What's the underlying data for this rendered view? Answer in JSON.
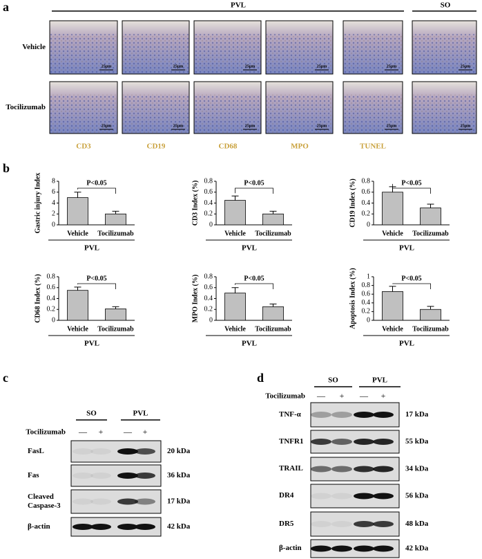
{
  "panel_a": {
    "label": "a",
    "groups": [
      "PVL",
      "SO"
    ],
    "rows": [
      "Vehicle",
      "Tocilizumab"
    ],
    "columns": [
      "CD3",
      "CD19",
      "CD68",
      "MPO",
      "TUNEL"
    ],
    "scale_bar": "25μm"
  },
  "panel_b": {
    "label": "b"
  },
  "chart_data": [
    {
      "type": "bar",
      "ylabel": "Gastric injury Index",
      "categories": [
        "Vehicle",
        "Tocilizumab"
      ],
      "group": "PVL",
      "values": [
        5.0,
        2.0
      ],
      "errors": [
        1.0,
        0.5
      ],
      "ylim": [
        0,
        8
      ],
      "yticks": [
        0,
        2,
        4,
        6,
        8
      ],
      "annotation": "P<0.05",
      "color": "#c0c0c0"
    },
    {
      "type": "bar",
      "ylabel": "CD3 Index (%)",
      "categories": [
        "Vehicle",
        "Tocilizumab"
      ],
      "group": "PVL",
      "values": [
        0.45,
        0.2
      ],
      "errors": [
        0.08,
        0.05
      ],
      "ylim": [
        0,
        0.8
      ],
      "yticks": [
        0,
        0.2,
        0.4,
        0.6,
        0.8
      ],
      "annotation": "P<0.05",
      "color": "#c0c0c0"
    },
    {
      "type": "bar",
      "ylabel": "CD19 Index (%)",
      "categories": [
        "Vehicle",
        "Tocilizumab"
      ],
      "group": "PVL",
      "values": [
        0.6,
        0.31
      ],
      "errors": [
        0.1,
        0.07
      ],
      "ylim": [
        0,
        0.8
      ],
      "yticks": [
        0,
        0.2,
        0.4,
        0.6,
        0.8
      ],
      "annotation": "P<0.05",
      "color": "#c0c0c0"
    },
    {
      "type": "bar",
      "ylabel": "CD68 Index (%)",
      "categories": [
        "Vehicle",
        "Tocilizumab"
      ],
      "group": "PVL",
      "values": [
        0.55,
        0.21
      ],
      "errors": [
        0.06,
        0.04
      ],
      "ylim": [
        0,
        0.8
      ],
      "yticks": [
        0,
        0.2,
        0.4,
        0.6,
        0.8
      ],
      "annotation": "P<0.05",
      "color": "#c0c0c0"
    },
    {
      "type": "bar",
      "ylabel": "MPO Index (%)",
      "categories": [
        "Vehicle",
        "Tocilizumab"
      ],
      "group": "PVL",
      "values": [
        0.5,
        0.25
      ],
      "errors": [
        0.1,
        0.05
      ],
      "ylim": [
        0,
        0.8
      ],
      "yticks": [
        0,
        0.2,
        0.4,
        0.6,
        0.8
      ],
      "annotation": "P<0.05",
      "color": "#c0c0c0"
    },
    {
      "type": "bar",
      "ylabel": "Apoptosis Index (%)",
      "categories": [
        "Vehicle",
        "Tocilizumab"
      ],
      "group": "PVL",
      "values": [
        0.66,
        0.25
      ],
      "errors": [
        0.12,
        0.07
      ],
      "ylim": [
        0,
        1
      ],
      "yticks": [
        0,
        0.2,
        0.4,
        0.6,
        0.8,
        1
      ],
      "annotation": "P<0.05",
      "color": "#c0c0c0"
    }
  ],
  "panel_c": {
    "label": "c",
    "groups": [
      "SO",
      "PVL"
    ],
    "treatment_label": "Tocilizumab",
    "treatment": [
      "—",
      "+",
      "—",
      "+"
    ],
    "blots": [
      {
        "name": "FasL",
        "size": "20 kDa"
      },
      {
        "name": "Fas",
        "size": "36 kDa"
      },
      {
        "name": "Cleaved Caspase-3",
        "size": "17 kDa"
      },
      {
        "name": "β-actin",
        "size": "42 kDa"
      }
    ]
  },
  "panel_d": {
    "label": "d",
    "groups": [
      "SO",
      "PVL"
    ],
    "treatment_label": "Tocilizumab",
    "treatment": [
      "—",
      "+",
      "—",
      "+"
    ],
    "blots": [
      {
        "name": "TNF-α",
        "size": "17 kDa"
      },
      {
        "name": "TNFR1",
        "size": "55 kDa"
      },
      {
        "name": "TRAIL",
        "size": "34 kDa"
      },
      {
        "name": "DR4",
        "size": "56 kDa"
      },
      {
        "name": "DR5",
        "size": "48 kDa"
      },
      {
        "name": "β-actin",
        "size": "42 kDa"
      }
    ]
  }
}
